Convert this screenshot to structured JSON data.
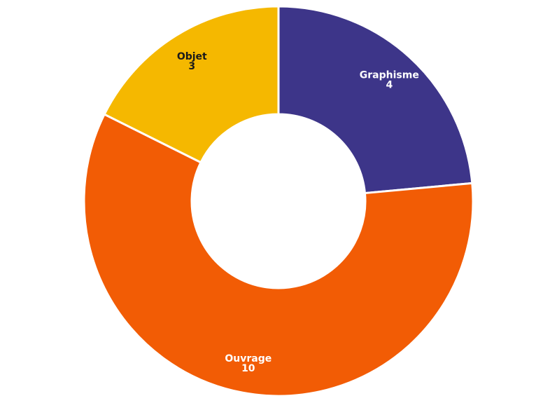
{
  "chart_data": {
    "type": "pie",
    "donut": true,
    "title": "",
    "slices": [
      {
        "label": "Graphisme",
        "value": 4,
        "color": "#3d3589",
        "text_color": "#ffffff"
      },
      {
        "label": "Ouvrage",
        "value": 10,
        "color": "#f25c05",
        "text_color": "#ffffff"
      },
      {
        "label": "Objet",
        "value": 3,
        "color": "#f5b800",
        "text_color": "#1a1a1a"
      }
    ]
  }
}
